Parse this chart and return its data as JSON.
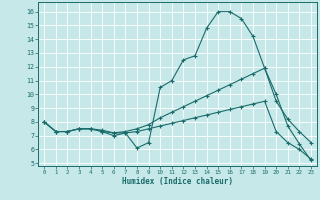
{
  "xlabel": "Humidex (Indice chaleur)",
  "xlim": [
    -0.5,
    23.5
  ],
  "ylim": [
    4.8,
    16.7
  ],
  "yticks": [
    5,
    6,
    7,
    8,
    9,
    10,
    11,
    12,
    13,
    14,
    15,
    16
  ],
  "xticks": [
    0,
    1,
    2,
    3,
    4,
    5,
    6,
    7,
    8,
    9,
    10,
    11,
    12,
    13,
    14,
    15,
    16,
    17,
    18,
    19,
    20,
    21,
    22,
    23
  ],
  "bg_color": "#c6e8e8",
  "line_color": "#1a6b6b",
  "grid_color": "#ffffff",
  "line1_x": [
    0,
    1,
    2,
    3,
    4,
    5,
    6,
    7,
    8,
    9,
    10,
    11,
    12,
    13,
    14,
    15,
    16,
    17,
    18,
    19,
    20,
    21,
    22,
    23
  ],
  "line1_y": [
    8.0,
    7.3,
    7.3,
    7.5,
    7.5,
    7.3,
    7.0,
    7.2,
    6.1,
    6.5,
    10.5,
    11.0,
    12.5,
    12.8,
    14.8,
    16.0,
    16.0,
    15.5,
    14.2,
    11.9,
    10.0,
    7.7,
    6.4,
    5.2
  ],
  "line2_x": [
    0,
    1,
    2,
    3,
    4,
    5,
    6,
    7,
    8,
    9,
    10,
    11,
    12,
    13,
    14,
    15,
    16,
    17,
    18,
    19,
    20,
    21,
    22,
    23
  ],
  "line2_y": [
    8.0,
    7.3,
    7.3,
    7.5,
    7.5,
    7.3,
    7.2,
    7.3,
    7.5,
    7.8,
    8.3,
    8.7,
    9.1,
    9.5,
    9.9,
    10.3,
    10.7,
    11.1,
    11.5,
    11.9,
    9.5,
    8.2,
    7.3,
    6.5
  ],
  "line3_x": [
    0,
    1,
    2,
    3,
    4,
    5,
    6,
    7,
    8,
    9,
    10,
    11,
    12,
    13,
    14,
    15,
    16,
    17,
    18,
    19,
    20,
    21,
    22,
    23
  ],
  "line3_y": [
    8.0,
    7.3,
    7.3,
    7.5,
    7.5,
    7.4,
    7.2,
    7.2,
    7.3,
    7.5,
    7.7,
    7.9,
    8.1,
    8.3,
    8.5,
    8.7,
    8.9,
    9.1,
    9.3,
    9.5,
    7.3,
    6.5,
    6.0,
    5.3
  ]
}
